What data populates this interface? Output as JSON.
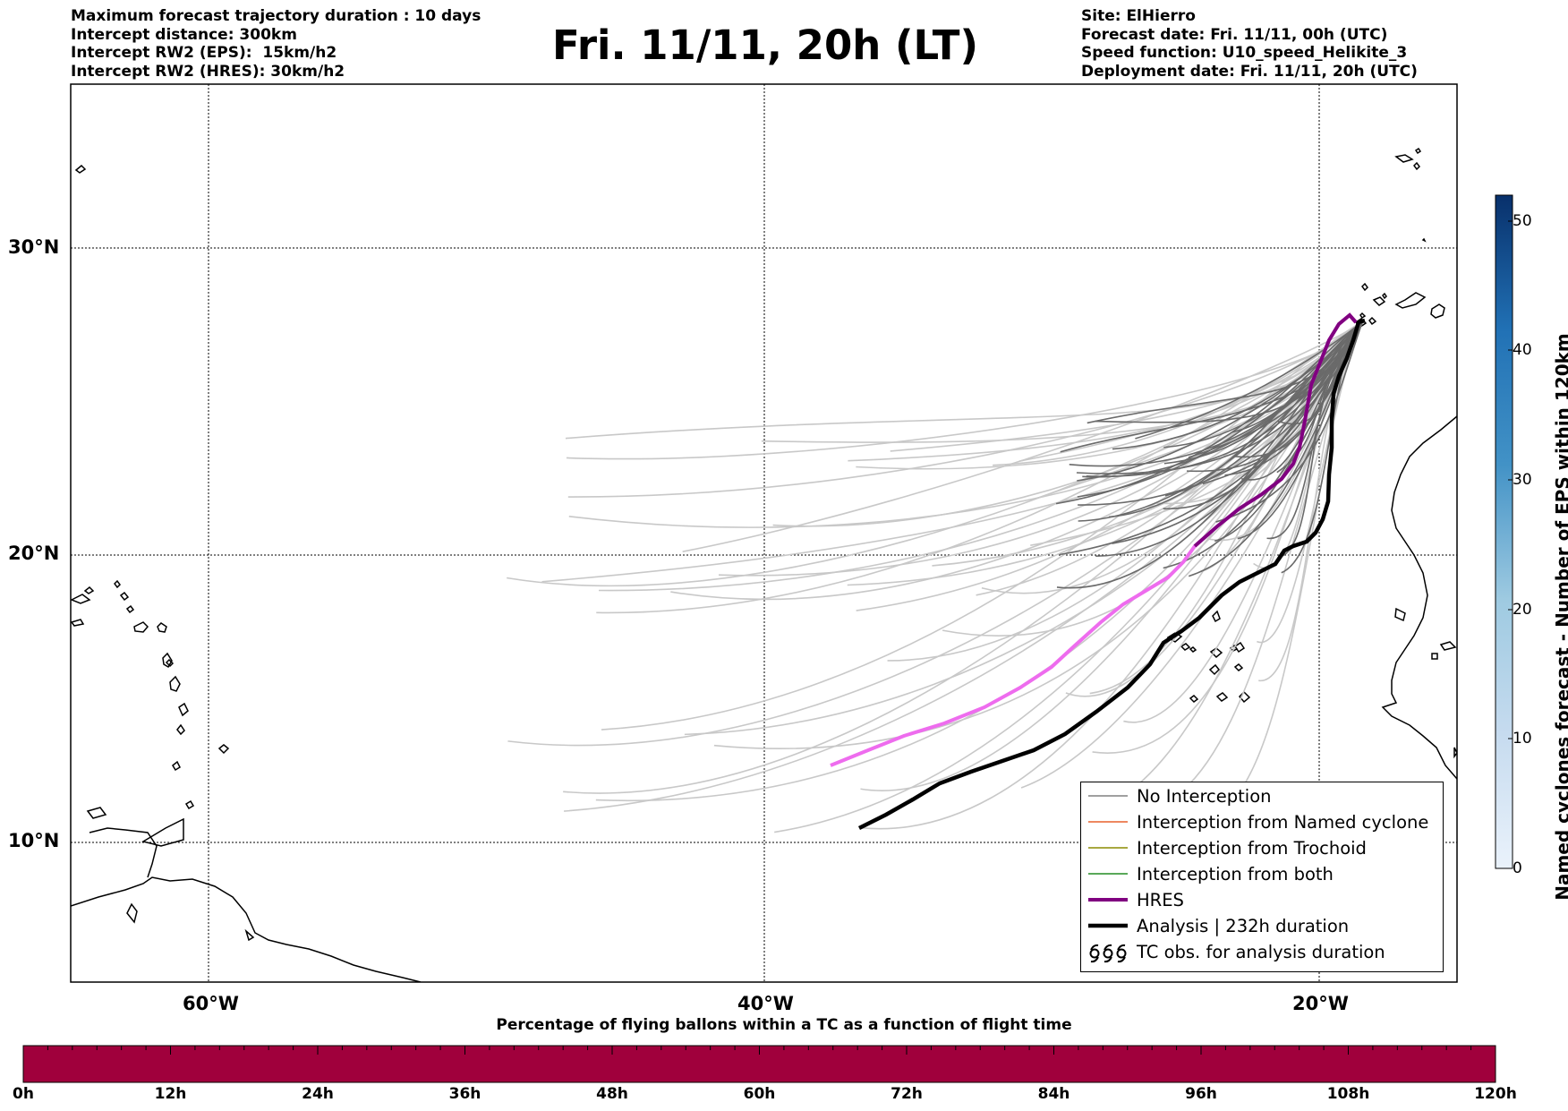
{
  "title": "Fri. 11/11, 20h (LT)",
  "header_left": [
    "Maximum forecast trajectory duration : 10 days",
    "Intercept distance: 300km",
    "Intercept RW2 (EPS):  15km/h2",
    "Intercept RW2 (HRES): 30km/h2"
  ],
  "header_right": [
    "Site: ElHierro",
    "Forecast date: Fri. 11/11, 00h (UTC)",
    "Speed function: U10_speed_Helikite_3",
    "Deployment date: Fri. 11/11, 20h (UTC)"
  ],
  "map": {
    "lat_labels": [
      "30°N",
      "20°N",
      "10°N"
    ],
    "lon_labels": [
      "60°W",
      "40°W",
      "20°W"
    ],
    "hres_color": "#ee6cee",
    "analysis_color": "#000000",
    "member_color_light": "#c8c8c8",
    "member_color_dark": "#6a6a6a"
  },
  "legend": {
    "items": [
      {
        "label": "No Interception",
        "color": "#808080"
      },
      {
        "label": "Interception from Named cyclone",
        "color": "#e8602c"
      },
      {
        "label": "Interception from Trochoid",
        "color": "#8b8b00"
      },
      {
        "label": "Interception from both",
        "color": "#228b22"
      },
      {
        "label": "HRES",
        "color": "#800080"
      },
      {
        "label": "Analysis | 232h duration",
        "color": "#000000"
      },
      {
        "label": "TC obs. for analysis duration",
        "icon": "cyclone-symbols"
      }
    ]
  },
  "colorbar": {
    "title": "Named cyclones forecast - Number of EPS within 120km",
    "ticks": [
      "0",
      "10",
      "20",
      "30",
      "40",
      "50"
    ],
    "range": [
      0,
      52
    ],
    "color_low": "#eaf2fb",
    "color_high": "#08306b"
  },
  "time_bar": {
    "title": "Percentage of flying ballons within a TC as a function of flight time",
    "ticks": [
      "0h",
      "12h",
      "24h",
      "36h",
      "48h",
      "60h",
      "72h",
      "84h",
      "96h",
      "108h",
      "120h"
    ],
    "fill_color": "#a0003c"
  }
}
